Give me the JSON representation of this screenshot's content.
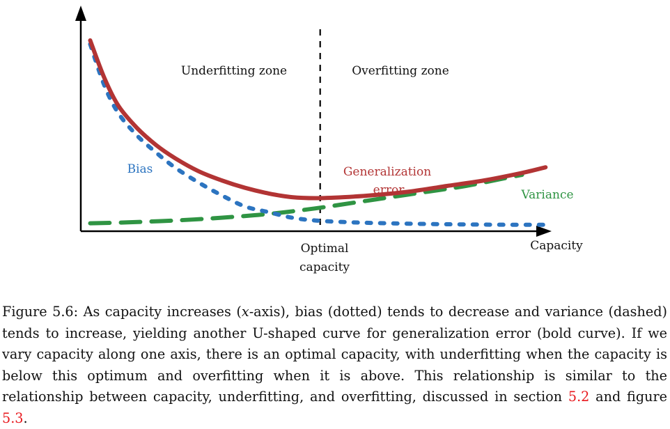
{
  "chart_data": {
    "type": "line",
    "xlabel": "Capacity",
    "zones": {
      "left": "Underfitting zone",
      "right": "Overfitting zone"
    },
    "optimal_line_label": [
      "Optimal",
      "capacity"
    ],
    "xlim": [
      0,
      1
    ],
    "ylim": [
      0,
      1
    ],
    "optimal_x": 0.51,
    "series": [
      {
        "name": "Bias",
        "style": "dotted",
        "color": "#2c74c0",
        "x": [
          0.02,
          0.05,
          0.08,
          0.12,
          0.16,
          0.2,
          0.25,
          0.3,
          0.35,
          0.4,
          0.45,
          0.5,
          0.56,
          0.62,
          0.7,
          0.78,
          0.86,
          0.94,
          0.99
        ],
        "y": [
          0.98,
          0.76,
          0.61,
          0.49,
          0.4,
          0.32,
          0.24,
          0.17,
          0.11,
          0.08,
          0.05,
          0.035,
          0.027,
          0.022,
          0.018,
          0.015,
          0.013,
          0.012,
          0.012
        ]
      },
      {
        "name": "Variance",
        "style": "dashed",
        "color": "#2f9443",
        "x": [
          0.02,
          0.1,
          0.2,
          0.3,
          0.4,
          0.5,
          0.58,
          0.66,
          0.74,
          0.82,
          0.9,
          0.94
        ],
        "y": [
          0.02,
          0.025,
          0.035,
          0.05,
          0.07,
          0.1,
          0.13,
          0.16,
          0.19,
          0.22,
          0.26,
          0.28
        ]
      },
      {
        "name": "Generalization error",
        "style": "bold",
        "color": "#b23434",
        "x": [
          0.02,
          0.05,
          0.08,
          0.12,
          0.16,
          0.2,
          0.25,
          0.3,
          0.35,
          0.4,
          0.45,
          0.5,
          0.56,
          0.62,
          0.7,
          0.78,
          0.86,
          0.94,
          0.99
        ],
        "y": [
          1.0,
          0.8,
          0.65,
          0.53,
          0.44,
          0.37,
          0.3,
          0.25,
          0.21,
          0.18,
          0.16,
          0.155,
          0.16,
          0.17,
          0.19,
          0.22,
          0.25,
          0.29,
          0.32
        ]
      }
    ],
    "series_labels": {
      "bias": "Bias",
      "variance": "Variance",
      "generalization": [
        "Generalization",
        "error"
      ]
    }
  },
  "caption": {
    "prefix": "Figure 5.6: As capacity increases (",
    "math_x": "x",
    "text_a": "-axis), bias (dotted) tends to decrease and variance (dashed) tends to increase, yielding another U-shaped curve for generalization error (bold curve). If we vary capacity along one axis, there is an optimal capacity, with underfitting when the capacity is below this optimum and overfitting when it is above. This relationship is similar to the relationship between capacity, underfitting, and overfitting, discussed in section ",
    "ref1": "5.2",
    "text_b": " and figure ",
    "ref2": "5.3",
    "suffix": "."
  }
}
